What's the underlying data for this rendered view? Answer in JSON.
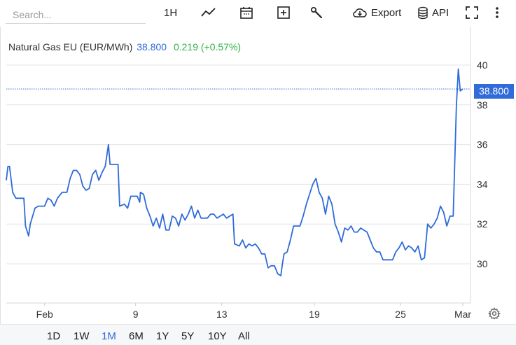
{
  "search": {
    "placeholder": "Search..."
  },
  "toolbar": {
    "interval_label": "1H",
    "export_label": "Export",
    "api_label": "API",
    "icons": [
      "line-chart-icon",
      "calendar-icon",
      "add-box-icon",
      "wrench-icon",
      "cloud-download-icon",
      "database-icon",
      "fullscreen-icon",
      "more-vertical-icon"
    ]
  },
  "instrument": {
    "name": "Natural Gas EU (EUR/MWh)",
    "last": "38.800",
    "change": "0.219 (+0.57%)",
    "price_tag": "38.800"
  },
  "colors": {
    "line": "#2f6bd9",
    "positive": "#2fb344",
    "accent": "#2f6bd9"
  },
  "range_buttons": [
    {
      "label": "1D"
    },
    {
      "label": "1W"
    },
    {
      "label": "1M",
      "active": true
    },
    {
      "label": "6M"
    },
    {
      "label": "1Y"
    },
    {
      "label": "5Y"
    },
    {
      "label": "10Y"
    },
    {
      "label": "All"
    }
  ],
  "chart_data": {
    "type": "line",
    "title": "",
    "xlabel": "",
    "ylabel": "",
    "x_tick_labels": [
      "Feb",
      "9",
      "13",
      "19",
      "25",
      "Mar"
    ],
    "y_tick_labels": [
      "30",
      "32",
      "34",
      "36",
      "38",
      "40"
    ],
    "ylim": [
      28,
      41
    ],
    "grid": true,
    "last_value": 38.8,
    "series": [
      {
        "name": "",
        "points": [
          [
            0,
            34.2
          ],
          [
            0.5,
            34.9
          ],
          [
            1,
            34.9
          ],
          [
            2,
            33.6
          ],
          [
            3,
            33.3
          ],
          [
            4,
            33.3
          ],
          [
            5.5,
            33.3
          ],
          [
            6,
            31.9
          ],
          [
            7,
            31.4
          ],
          [
            7.5,
            32.0
          ],
          [
            9,
            32.8
          ],
          [
            10,
            32.9
          ],
          [
            12,
            32.9
          ],
          [
            13,
            33.3
          ],
          [
            14,
            33.2
          ],
          [
            15,
            32.9
          ],
          [
            16,
            33.3
          ],
          [
            17.5,
            33.6
          ],
          [
            19,
            33.6
          ],
          [
            20,
            34.3
          ],
          [
            21,
            34.7
          ],
          [
            22,
            34.7
          ],
          [
            23,
            34.5
          ],
          [
            24,
            33.9
          ],
          [
            25,
            33.7
          ],
          [
            26,
            33.8
          ],
          [
            27,
            34.5
          ],
          [
            28,
            34.7
          ],
          [
            29,
            34.2
          ],
          [
            30,
            34.6
          ],
          [
            31,
            34.9
          ],
          [
            32,
            36.0
          ],
          [
            32.5,
            35.0
          ],
          [
            35,
            35.0
          ],
          [
            35.5,
            32.9
          ],
          [
            37,
            33.0
          ],
          [
            38,
            32.8
          ],
          [
            39,
            33.4
          ],
          [
            41,
            33.4
          ],
          [
            41.8,
            33.1
          ],
          [
            42,
            33.6
          ],
          [
            43,
            33.5
          ],
          [
            44,
            32.8
          ],
          [
            45,
            32.4
          ],
          [
            46,
            31.9
          ],
          [
            47,
            32.3
          ],
          [
            48,
            31.8
          ],
          [
            49,
            32.5
          ],
          [
            50,
            31.7
          ],
          [
            51,
            31.7
          ],
          [
            52,
            32.4
          ],
          [
            53,
            32.3
          ],
          [
            54,
            31.9
          ],
          [
            55,
            32.5
          ],
          [
            56,
            32.2
          ],
          [
            57,
            32.5
          ],
          [
            58,
            32.9
          ],
          [
            59,
            32.3
          ],
          [
            60,
            32.7
          ],
          [
            61,
            32.3
          ],
          [
            63,
            32.3
          ],
          [
            64,
            32.5
          ],
          [
            65,
            32.5
          ],
          [
            66,
            32.3
          ],
          [
            68,
            32.5
          ],
          [
            69,
            32.3
          ],
          [
            71,
            32.5
          ],
          [
            71.5,
            31.0
          ],
          [
            73,
            30.9
          ],
          [
            74,
            31.2
          ],
          [
            75,
            30.8
          ],
          [
            76,
            31.0
          ],
          [
            77,
            30.9
          ],
          [
            78,
            31.0
          ],
          [
            79,
            30.8
          ],
          [
            80,
            30.5
          ],
          [
            81,
            30.5
          ],
          [
            82,
            29.8
          ],
          [
            83,
            29.9
          ],
          [
            84,
            29.9
          ],
          [
            85,
            29.5
          ],
          [
            86,
            29.4
          ],
          [
            86.5,
            30.0
          ],
          [
            87,
            30.5
          ],
          [
            88,
            30.6
          ],
          [
            89,
            31.2
          ],
          [
            90,
            31.9
          ],
          [
            92,
            31.9
          ],
          [
            93,
            32.4
          ],
          [
            94,
            33.0
          ],
          [
            95,
            33.5
          ],
          [
            96,
            34.0
          ],
          [
            97,
            34.3
          ],
          [
            98,
            33.6
          ],
          [
            99,
            33.3
          ],
          [
            100,
            32.5
          ],
          [
            101,
            33.4
          ],
          [
            102,
            33.0
          ],
          [
            103,
            32.0
          ],
          [
            104,
            31.6
          ],
          [
            105,
            31.1
          ],
          [
            106,
            31.8
          ],
          [
            107,
            31.7
          ],
          [
            108,
            31.9
          ],
          [
            109,
            31.6
          ],
          [
            110,
            31.6
          ],
          [
            111,
            31.8
          ],
          [
            113,
            31.6
          ],
          [
            114,
            31.2
          ],
          [
            115,
            30.8
          ],
          [
            116,
            30.6
          ],
          [
            117,
            30.6
          ],
          [
            118,
            30.2
          ],
          [
            121,
            30.2
          ],
          [
            122,
            30.6
          ],
          [
            123,
            30.8
          ],
          [
            124,
            31.1
          ],
          [
            125,
            30.7
          ],
          [
            126,
            30.9
          ],
          [
            127,
            30.8
          ],
          [
            128,
            30.6
          ],
          [
            129,
            30.9
          ],
          [
            130,
            30.2
          ],
          [
            131,
            30.3
          ],
          [
            132,
            32.0
          ],
          [
            133,
            31.8
          ],
          [
            134,
            32.0
          ],
          [
            135,
            32.3
          ],
          [
            136,
            32.9
          ],
          [
            137,
            32.6
          ],
          [
            138,
            31.9
          ],
          [
            139,
            32.4
          ],
          [
            140,
            32.4
          ],
          [
            141,
            38.0
          ],
          [
            141.6,
            39.8
          ],
          [
            142.2,
            38.7
          ],
          [
            143,
            38.8
          ]
        ]
      }
    ],
    "x_tick_positions": [
      12,
      40.5,
      67.5,
      96.5,
      123.5,
      143
    ]
  }
}
